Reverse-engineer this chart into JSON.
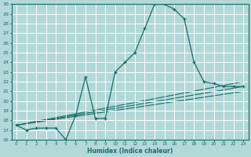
{
  "xlabel": "Humidex (Indice chaleur)",
  "bg_color": "#b2d8d8",
  "grid_color": "#ffffff",
  "line_color": "#1a6b6b",
  "xlim": [
    -0.5,
    23.5
  ],
  "ylim": [
    16,
    30
  ],
  "xticks": [
    0,
    1,
    2,
    3,
    4,
    5,
    6,
    7,
    8,
    9,
    10,
    11,
    12,
    13,
    14,
    15,
    16,
    17,
    18,
    19,
    20,
    21,
    22,
    23
  ],
  "yticks": [
    16,
    17,
    18,
    19,
    20,
    21,
    22,
    23,
    24,
    25,
    26,
    27,
    28,
    29,
    30
  ],
  "main_curve_x": [
    0,
    1,
    2,
    3,
    4,
    5,
    6,
    7,
    8,
    9,
    10,
    11,
    12,
    13,
    14,
    15,
    16,
    17,
    18,
    19,
    20,
    21,
    22,
    23
  ],
  "main_curve_y": [
    17.5,
    17.0,
    17.2,
    17.2,
    17.2,
    16.0,
    18.5,
    22.5,
    18.2,
    18.2,
    23.0,
    24.0,
    25.0,
    27.5,
    30.0,
    30.0,
    29.5,
    28.5,
    24.0,
    22.0,
    21.8,
    21.5,
    21.5,
    21.5
  ],
  "line2_x": [
    0,
    23
  ],
  "line2_y": [
    17.5,
    22.0
  ],
  "line3_x": [
    0,
    23
  ],
  "line3_y": [
    17.5,
    21.5
  ],
  "line4_x": [
    0,
    23
  ],
  "line4_y": [
    17.5,
    21.0
  ],
  "marker_x": [
    0,
    1,
    2,
    3,
    4,
    5,
    6,
    7,
    8,
    9,
    10,
    11,
    12,
    13,
    14,
    15,
    16,
    17,
    18,
    19,
    20,
    21,
    22,
    23
  ],
  "marker_y": [
    17.5,
    17.0,
    17.2,
    17.2,
    17.2,
    16.0,
    18.5,
    22.5,
    18.2,
    18.2,
    23.0,
    24.0,
    25.0,
    27.5,
    30.0,
    30.0,
    29.5,
    28.5,
    24.0,
    22.0,
    21.8,
    21.5,
    21.5,
    21.5
  ]
}
